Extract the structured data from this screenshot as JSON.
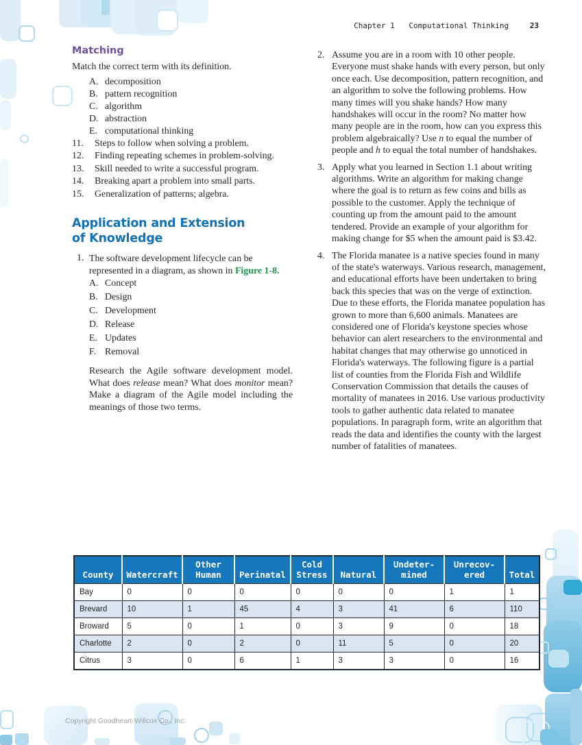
{
  "header": {
    "chapter": "Chapter 1",
    "title": "Computational Thinking",
    "page_number": "23"
  },
  "matching": {
    "heading": "Matching",
    "intro": "Match the correct term with its definition.",
    "terms": [
      {
        "label": "A.",
        "text": "decomposition"
      },
      {
        "label": "B.",
        "text": "pattern recognition"
      },
      {
        "label": "C.",
        "text": "algorithm"
      },
      {
        "label": "D.",
        "text": "abstraction"
      },
      {
        "label": "E.",
        "text": "computational thinking"
      }
    ],
    "questions": [
      {
        "num": "11.",
        "text": "Steps to follow when solving a problem."
      },
      {
        "num": "12.",
        "text": "Finding repeating schemes in problem-solving."
      },
      {
        "num": "13.",
        "text": "Skill needed to write a successful program."
      },
      {
        "num": "14.",
        "text": "Breaking apart a problem into small parts."
      },
      {
        "num": "15.",
        "text": "Generalization of patterns; algebra."
      }
    ]
  },
  "application": {
    "heading_line1": "Application and Extension",
    "heading_line2": "of Knowledge",
    "q1": {
      "num": "1.",
      "intro_text": "The software development lifecycle can be represented in a diagram, as shown in ",
      "figure_ref": "Figure 1-8.",
      "options": [
        {
          "label": "A.",
          "text": "Concept"
        },
        {
          "label": "B.",
          "text": "Design"
        },
        {
          "label": "C.",
          "text": "Development"
        },
        {
          "label": "D.",
          "text": "Release"
        },
        {
          "label": "E.",
          "text": "Updates"
        },
        {
          "label": "F.",
          "text": "Removal"
        }
      ],
      "para": [
        "Research the Agile software development model. What does ",
        "release",
        " mean? What does ",
        "monitor",
        " mean? Make a diagram of the Agile model including the meanings of those two terms."
      ]
    }
  },
  "right": {
    "q2": {
      "num": "2.",
      "parts": [
        "Assume you are in a room with 10 other people. Everyone must shake hands with every person, but only once each. Use decomposition, pattern recognition, and an algorithm to solve the following problems. How many times will you shake hands? How many handshakes will occur in the room? No matter how many people are in the room, how can you express this problem algebraically? Use ",
        "n",
        " to equal the number of people and ",
        "h",
        " to equal the total number of handshakes."
      ]
    },
    "q3": {
      "num": "3.",
      "text": "Apply what you learned in Section 1.1 about writing algorithms. Write an algorithm for making change where the goal is to return as few coins and bills as possible to the customer. Apply the technique of counting up from the amount paid to the amount tendered. Provide an example of your algorithm for making change for $5 when the amount paid is $3.42."
    },
    "q4": {
      "num": "4.",
      "text": "The Florida manatee is a native species found in many of the state's waterways. Various research, management, and educational efforts have been undertaken to bring back this species that was on the verge of extinction. Due to these efforts, the Florida manatee population has grown to more than 6,600 animals. Manatees are considered one of Florida's keystone species whose behavior can alert researchers to the environmental and habitat changes that may otherwise go unnoticed in Florida's waterways. The following figure is a partial list of counties from the Florida Fish and Wildlife Conservation Commission that details the causes of mortality of manatees in 2016. Use various productivity tools to gather authentic data related to manatee populations. In paragraph form, write an algorithm that reads the data and identifies the county with the largest number of fatalities of manatees."
    }
  },
  "table": {
    "headers": [
      "County",
      "Watercraft",
      "Other\nHuman",
      "Perinatal",
      "Cold\nStress",
      "Natural",
      "Undeter-\nmined",
      "Unrecov-\nered",
      "Total"
    ],
    "rows": [
      [
        "Bay",
        "0",
        "0",
        "0",
        "0",
        "0",
        "0",
        "1",
        "1"
      ],
      [
        "Brevard",
        "10",
        "1",
        "45",
        "4",
        "3",
        "41",
        "6",
        "110"
      ],
      [
        "Broward",
        "5",
        "0",
        "1",
        "0",
        "3",
        "9",
        "0",
        "18"
      ],
      [
        "Charlotte",
        "2",
        "0",
        "2",
        "0",
        "11",
        "5",
        "0",
        "20"
      ],
      [
        "Citrus",
        "3",
        "0",
        "6",
        "1",
        "3",
        "3",
        "0",
        "16"
      ]
    ]
  },
  "footer": {
    "copyright": "Copyright Goodheart-Willcox Co., Inc."
  },
  "colors": {
    "heading_purple": "#6f51a1",
    "heading_blue": "#1272b8",
    "figure_green": "#169a4a",
    "table_header_bg": "#1677bd",
    "table_row_alt": "#dbe4f3",
    "body_text": "#2b2626"
  }
}
